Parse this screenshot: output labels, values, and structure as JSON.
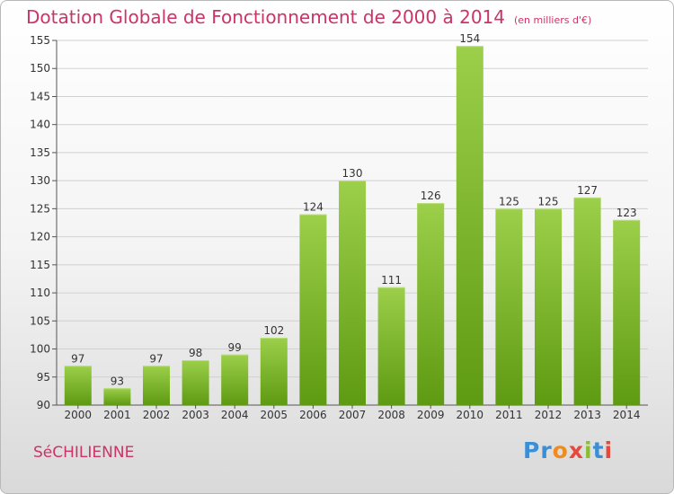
{
  "header": {
    "title": "Dotation Globale de Fonctionnement de 2000 à 2014",
    "subtitle": "(en milliers d'€)"
  },
  "footer": {
    "commune": "SéCHILIENNE",
    "logo": "Proxiti",
    "logo_colors": [
      "#3b8fd6",
      "#3b8fd6",
      "#f08c1e",
      "#e8483c",
      "#8cbf2e",
      "#3b8fd6",
      "#e8483c"
    ]
  },
  "colors": {
    "bar_top": "#9ccf4a",
    "bar_bottom": "#5e9a12",
    "title": "#cc3366",
    "grid": "#d0d0d0"
  },
  "chart_data": {
    "type": "bar",
    "title": "Dotation Globale de Fonctionnement de 2000 à 2014",
    "subtitle": "(en milliers d'€)",
    "xlabel": "",
    "ylabel": "",
    "ylim": [
      90,
      155
    ],
    "yticks": [
      90,
      95,
      100,
      105,
      110,
      115,
      120,
      125,
      130,
      135,
      140,
      145,
      150,
      155
    ],
    "grid": true,
    "categories": [
      "2000",
      "2001",
      "2002",
      "2003",
      "2004",
      "2005",
      "2006",
      "2007",
      "2008",
      "2009",
      "2010",
      "2011",
      "2012",
      "2013",
      "2014"
    ],
    "values": [
      97,
      93,
      97,
      98,
      99,
      102,
      124,
      130,
      111,
      126,
      154,
      125,
      125,
      127,
      123
    ]
  }
}
